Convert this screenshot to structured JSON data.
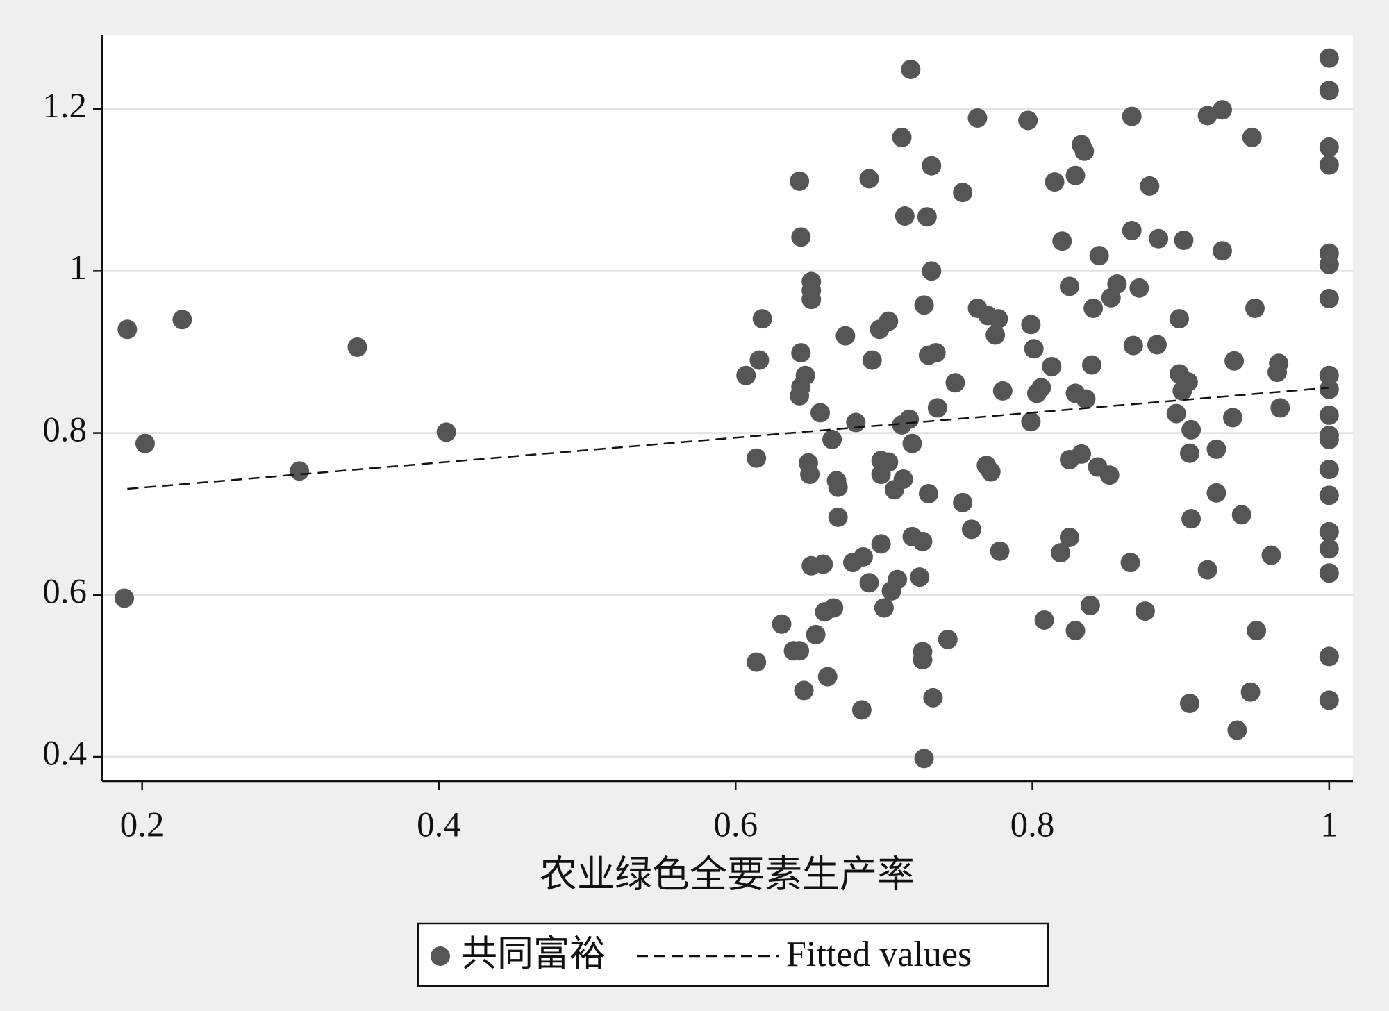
{
  "chart_data": {
    "type": "scatter",
    "x_label": "农业绿色全要素生产率",
    "xlim": [
      0.173,
      1.016
    ],
    "ylim": [
      0.37,
      1.291
    ],
    "xticks": [
      0.2,
      0.4,
      0.6,
      0.8,
      1
    ],
    "yticks": [
      0.4,
      0.6,
      0.8,
      1,
      1.2
    ],
    "grid": true,
    "legend": "bottom",
    "series": [
      {
        "name": "共同富裕",
        "color": "#555555",
        "type": "scatter",
        "x": [
          0.19,
          0.202,
          0.227,
          0.188,
          0.306,
          0.345,
          0.405,
          0.607,
          0.616,
          0.618,
          0.614,
          0.614,
          0.631,
          0.639,
          0.643,
          0.643,
          0.644,
          0.644,
          0.647,
          0.644,
          0.643,
          0.651,
          0.651,
          0.651,
          0.649,
          0.65,
          0.651,
          0.659,
          0.657,
          0.665,
          0.668,
          0.669,
          0.669,
          0.654,
          0.66,
          0.666,
          0.646,
          0.662,
          0.674,
          0.681,
          0.685,
          0.679,
          0.686,
          0.69,
          0.692,
          0.69,
          0.697,
          0.703,
          0.698,
          0.703,
          0.698,
          0.698,
          0.7,
          0.705,
          0.709,
          0.707,
          0.713,
          0.712,
          0.714,
          0.718,
          0.717,
          0.712,
          0.719,
          0.719,
          0.726,
          0.724,
          0.727,
          0.729,
          0.732,
          0.732,
          0.73,
          0.735,
          0.736,
          0.73,
          0.726,
          0.726,
          0.727,
          0.733,
          0.743,
          0.748,
          0.753,
          0.753,
          0.759,
          0.763,
          0.763,
          0.77,
          0.777,
          0.775,
          0.769,
          0.772,
          0.78,
          0.778,
          0.797,
          0.799,
          0.801,
          0.799,
          0.803,
          0.806,
          0.808,
          0.813,
          0.815,
          0.82,
          0.819,
          0.825,
          0.825,
          0.825,
          0.829,
          0.833,
          0.835,
          0.829,
          0.836,
          0.833,
          0.829,
          0.839,
          0.84,
          0.841,
          0.844,
          0.845,
          0.852,
          0.853,
          0.857,
          0.867,
          0.867,
          0.868,
          0.872,
          0.866,
          0.876,
          0.879,
          0.884,
          0.885,
          0.899,
          0.902,
          0.899,
          0.905,
          0.901,
          0.897,
          0.907,
          0.906,
          0.907,
          0.906,
          0.918,
          0.918,
          0.928,
          0.928,
          0.924,
          0.924,
          0.936,
          0.935,
          0.938,
          0.941,
          0.947,
          0.948,
          0.95,
          0.951,
          0.961,
          0.966,
          0.965,
          0.967,
          1,
          1,
          1,
          1,
          1,
          1,
          1,
          1,
          1,
          1,
          1,
          1,
          1,
          1,
          1,
          1,
          1,
          1,
          1
        ],
        "values": [
          0.928,
          0.787,
          0.94,
          0.596,
          0.753,
          0.906,
          0.801,
          0.871,
          0.89,
          0.941,
          0.769,
          0.517,
          0.564,
          0.531,
          0.531,
          1.111,
          1.042,
          0.899,
          0.871,
          0.857,
          0.846,
          0.987,
          0.976,
          0.965,
          0.763,
          0.749,
          0.636,
          0.638,
          0.825,
          0.792,
          0.741,
          0.733,
          0.696,
          0.551,
          0.579,
          0.584,
          0.482,
          0.499,
          0.92,
          0.813,
          0.458,
          0.64,
          0.647,
          0.615,
          0.89,
          1.114,
          0.928,
          0.938,
          0.766,
          0.764,
          0.749,
          0.663,
          0.584,
          0.605,
          0.619,
          0.73,
          0.743,
          1.165,
          1.068,
          1.249,
          0.817,
          0.81,
          0.787,
          0.672,
          0.666,
          0.622,
          0.958,
          1.067,
          1.13,
          1.0,
          0.896,
          0.899,
          0.831,
          0.725,
          0.53,
          0.52,
          0.398,
          0.473,
          0.545,
          0.862,
          1.097,
          0.714,
          0.681,
          1.189,
          0.954,
          0.945,
          0.941,
          0.921,
          0.76,
          0.752,
          0.852,
          0.654,
          1.186,
          0.934,
          0.904,
          0.814,
          0.849,
          0.856,
          0.569,
          0.882,
          1.11,
          1.037,
          0.652,
          0.981,
          0.671,
          0.767,
          1.118,
          1.156,
          1.148,
          0.849,
          0.842,
          0.774,
          0.556,
          0.587,
          0.884,
          0.954,
          0.758,
          1.019,
          0.748,
          0.967,
          0.984,
          1.191,
          1.05,
          0.908,
          0.979,
          0.64,
          0.58,
          1.105,
          0.909,
          1.04,
          0.941,
          1.038,
          0.873,
          0.863,
          0.852,
          0.824,
          0.804,
          0.775,
          0.694,
          0.466,
          0.631,
          1.192,
          1.199,
          1.025,
          0.78,
          0.726,
          0.889,
          0.819,
          0.433,
          0.699,
          0.48,
          1.165,
          0.954,
          0.556,
          0.649,
          0.886,
          0.875,
          0.831,
          1.263,
          1.223,
          1.153,
          1.131,
          1.022,
          1.008,
          0.966,
          0.871,
          0.854,
          0.822,
          0.797,
          0.792,
          0.755,
          0.723,
          0.678,
          0.657,
          0.627,
          0.524,
          0.47
        ]
      },
      {
        "name": "Fitted values",
        "color": "#111111",
        "type": "line",
        "line_style": "dashed",
        "x": [
          0.19,
          1
        ],
        "values": [
          0.731,
          0.856
        ]
      }
    ]
  }
}
